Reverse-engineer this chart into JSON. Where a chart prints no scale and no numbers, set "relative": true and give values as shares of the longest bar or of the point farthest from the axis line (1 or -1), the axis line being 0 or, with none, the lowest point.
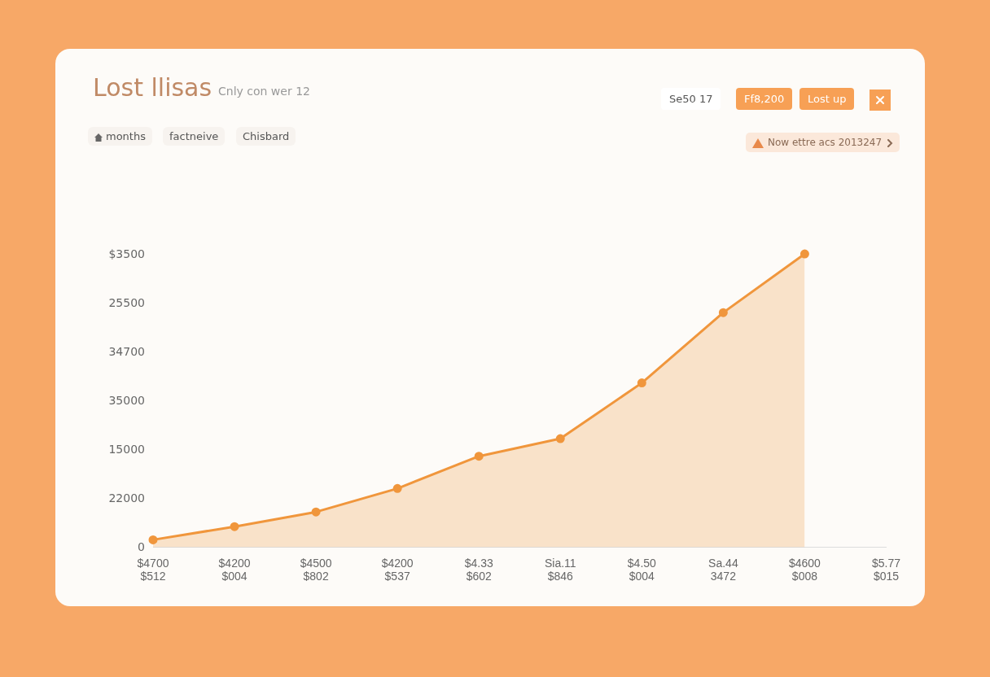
{
  "chart_data": {
    "type": "area",
    "title": "Lost llisas",
    "subtitle": "Cnly con wer 12",
    "categories": [
      "$4700\n$512",
      "$4200\n$004",
      "$4500\n$802",
      "$4200\n$537",
      "$4.33\n$602",
      "Sia.11\n$846",
      "$4.50\n$004",
      "Sa.44\n3472",
      "$4600\n$008",
      "$5.77\n$015"
    ],
    "series": [
      {
        "color": "#f0963c",
        "values": [
          0.025,
          0.07,
          0.12,
          0.2,
          0.31,
          0.37,
          0.56,
          0.8,
          1,
          null
        ]
      }
    ],
    "relative": true,
    "annotations": [
      "months",
      "factneive",
      "Chisbard",
      "Se50 17",
      "Ff8,200",
      "Lost up",
      "Now ettre acs 2013247",
      "0",
      "22000",
      "15000",
      "35000",
      "34700",
      "25500",
      "$3500"
    ],
    "marker": "circle",
    "grid": false,
    "legend": false
  }
}
